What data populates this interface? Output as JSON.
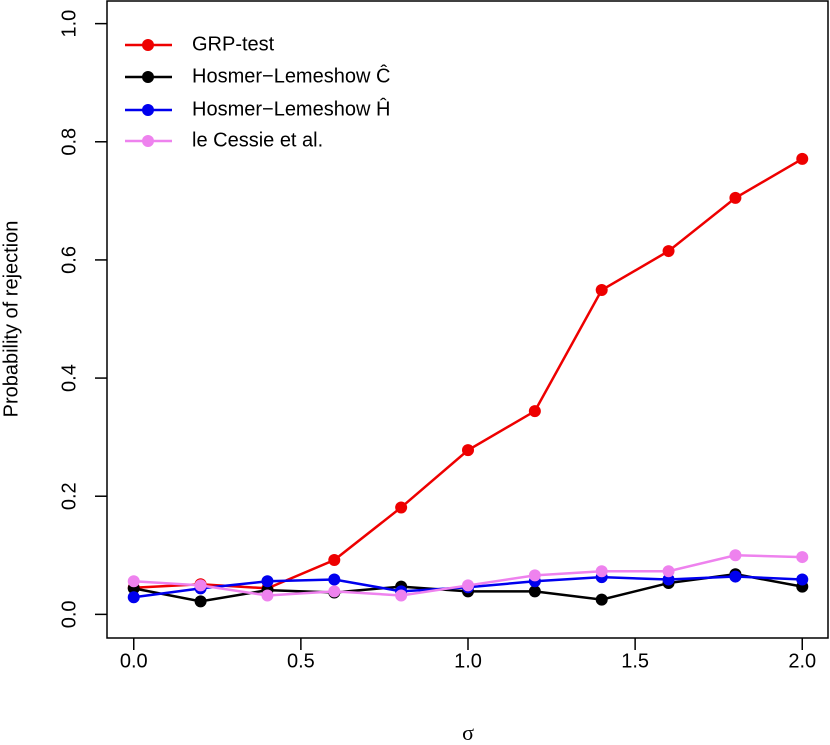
{
  "chart_data": {
    "type": "line",
    "x_label": "σ",
    "y_label": "Probability of rejection",
    "x": [
      0,
      0.2,
      0.4,
      0.6,
      0.8,
      1.0,
      1.2,
      1.4,
      1.6,
      1.8,
      2.0
    ],
    "series": [
      {
        "name": "GRP-test",
        "color": "#ee0000",
        "values": [
          0.045,
          0.051,
          0.044,
          0.092,
          0.181,
          0.278,
          0.344,
          0.549,
          0.615,
          0.705,
          0.771
        ]
      },
      {
        "name": "Hosmer−Lemeshow Ĉ",
        "color": "#000000",
        "values": [
          0.044,
          0.022,
          0.041,
          0.037,
          0.047,
          0.039,
          0.039,
          0.025,
          0.053,
          0.068,
          0.047
        ]
      },
      {
        "name": "Hosmer−Lemeshow Ĥ",
        "color": "#0000ee",
        "values": [
          0.029,
          0.044,
          0.056,
          0.059,
          0.039,
          0.046,
          0.056,
          0.063,
          0.059,
          0.064,
          0.059
        ]
      },
      {
        "name": "le Cessie et al.",
        "color": "#ee82ee",
        "values": [
          0.056,
          0.049,
          0.032,
          0.039,
          0.032,
          0.049,
          0.066,
          0.073,
          0.073,
          0.1,
          0.097
        ]
      }
    ],
    "xlim": [
      -0.08,
      2.08
    ],
    "ylim": [
      -0.04,
      1.04
    ],
    "xticks": [
      {
        "value": 0,
        "label": "0.0"
      },
      {
        "value": 0.5,
        "label": "0.5"
      },
      {
        "value": 1,
        "label": "1.0"
      },
      {
        "value": 1.5,
        "label": "1.5"
      },
      {
        "value": 2,
        "label": "2.0"
      }
    ],
    "yticks": [
      {
        "value": 0,
        "label": "0.0"
      },
      {
        "value": 0.2,
        "label": "0.2"
      },
      {
        "value": 0.4,
        "label": "0.4"
      },
      {
        "value": 0.6,
        "label": "0.6"
      },
      {
        "value": 0.8,
        "label": "0.8"
      },
      {
        "value": 1,
        "label": "1.0"
      }
    ],
    "legend": "top-left",
    "grid": false
  }
}
